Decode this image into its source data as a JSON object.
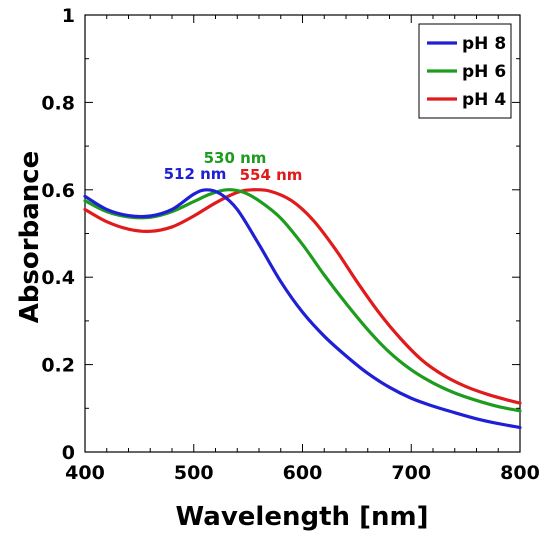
{
  "chart_data": {
    "type": "line",
    "title": "",
    "xlabel": "Wavelength [nm]",
    "ylabel": "Absorbance",
    "xlim": [
      400,
      800
    ],
    "ylim": [
      0,
      1
    ],
    "x_ticks": [
      "400",
      "500",
      "600",
      "700",
      "800"
    ],
    "y_ticks": [
      "0",
      "0.2",
      "0.4",
      "0.6",
      "0.8",
      "1"
    ],
    "grid": false,
    "legend_position": "top-right",
    "series": [
      {
        "name": "pH 8",
        "color": "#1f1fd6",
        "peak_label": "512 nm",
        "points": [
          [
            400,
            0.585
          ],
          [
            420,
            0.555
          ],
          [
            440,
            0.541
          ],
          [
            460,
            0.54
          ],
          [
            480,
            0.555
          ],
          [
            500,
            0.59
          ],
          [
            512,
            0.6
          ],
          [
            525,
            0.59
          ],
          [
            540,
            0.555
          ],
          [
            560,
            0.475
          ],
          [
            580,
            0.39
          ],
          [
            600,
            0.32
          ],
          [
            620,
            0.265
          ],
          [
            640,
            0.22
          ],
          [
            660,
            0.18
          ],
          [
            680,
            0.148
          ],
          [
            700,
            0.123
          ],
          [
            720,
            0.105
          ],
          [
            740,
            0.09
          ],
          [
            760,
            0.076
          ],
          [
            780,
            0.065
          ],
          [
            800,
            0.056
          ]
        ]
      },
      {
        "name": "pH 6",
        "color": "#1e9c1e",
        "peak_label": "530 nm",
        "points": [
          [
            400,
            0.575
          ],
          [
            420,
            0.55
          ],
          [
            440,
            0.538
          ],
          [
            460,
            0.537
          ],
          [
            480,
            0.55
          ],
          [
            500,
            0.573
          ],
          [
            515,
            0.59
          ],
          [
            530,
            0.6
          ],
          [
            545,
            0.595
          ],
          [
            560,
            0.575
          ],
          [
            580,
            0.535
          ],
          [
            600,
            0.475
          ],
          [
            620,
            0.405
          ],
          [
            640,
            0.34
          ],
          [
            660,
            0.28
          ],
          [
            680,
            0.228
          ],
          [
            700,
            0.188
          ],
          [
            720,
            0.158
          ],
          [
            740,
            0.135
          ],
          [
            760,
            0.118
          ],
          [
            780,
            0.104
          ],
          [
            800,
            0.094
          ]
        ]
      },
      {
        "name": "pH 4",
        "color": "#e01b1b",
        "peak_label": "554 nm",
        "points": [
          [
            400,
            0.555
          ],
          [
            420,
            0.527
          ],
          [
            440,
            0.51
          ],
          [
            460,
            0.505
          ],
          [
            480,
            0.515
          ],
          [
            500,
            0.54
          ],
          [
            520,
            0.57
          ],
          [
            540,
            0.594
          ],
          [
            554,
            0.6
          ],
          [
            570,
            0.597
          ],
          [
            590,
            0.575
          ],
          [
            610,
            0.53
          ],
          [
            630,
            0.465
          ],
          [
            650,
            0.39
          ],
          [
            670,
            0.32
          ],
          [
            690,
            0.26
          ],
          [
            710,
            0.21
          ],
          [
            730,
            0.175
          ],
          [
            750,
            0.15
          ],
          [
            770,
            0.132
          ],
          [
            790,
            0.118
          ],
          [
            800,
            0.112
          ]
        ]
      }
    ]
  }
}
